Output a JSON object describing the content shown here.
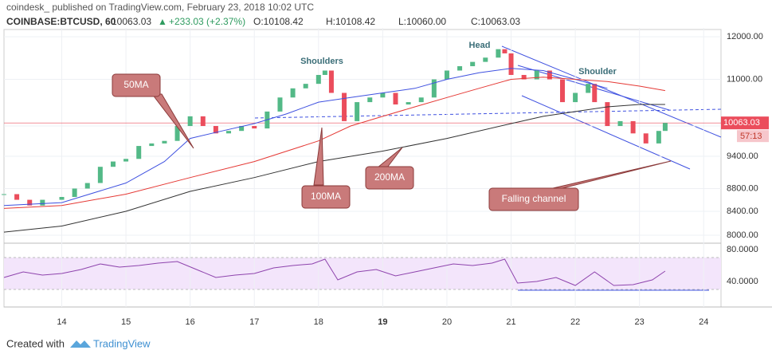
{
  "chart_data": {
    "type": "candlestick",
    "title": "coindesk_ published on TradingView.com, February 23, 2018 10:02 UTC",
    "symbol": "COINBASE:BTCUSD, 60",
    "last": "10063.03",
    "change_arrow": "▲",
    "change": "+233.03 (+2.37%)",
    "ohlc": [
      "O:10108.42",
      "H:10108.42",
      "L:10060.00",
      "C:10063.03"
    ],
    "log_scale": true,
    "xlim": [
      13.1,
      24.27
    ],
    "xticks": [
      14,
      15,
      16,
      17,
      18,
      19,
      20,
      21,
      22,
      23,
      24
    ],
    "emphasized_xtick": 19,
    "ylim": [
      7870,
      12220
    ],
    "yticks": [
      {
        "value": 8000,
        "label": "8000.00"
      },
      {
        "value": 8400,
        "label": "8400.00"
      },
      {
        "value": 8800,
        "label": "8800.00"
      },
      {
        "value": 9400,
        "label": "9400.00"
      },
      {
        "value": 10000,
        "label": "10000.00"
      },
      {
        "value": 11000,
        "label": "11000.00"
      },
      {
        "value": 12000,
        "label": "12000.00"
      }
    ],
    "current_price": 10063.03,
    "countdown": "57:13",
    "x": [
      13.1,
      13.3,
      13.5,
      13.7,
      14.0,
      14.2,
      14.4,
      14.6,
      14.8,
      15.0,
      15.2,
      15.4,
      15.6,
      15.8,
      16.0,
      16.2,
      16.4,
      16.6,
      16.8,
      17.0,
      17.2,
      17.4,
      17.6,
      17.8,
      18.0,
      18.1,
      18.2,
      18.4,
      18.6,
      18.8,
      19.0,
      19.2,
      19.4,
      19.6,
      19.8,
      20.0,
      20.2,
      20.4,
      20.6,
      20.8,
      20.9,
      21.0,
      21.2,
      21.4,
      21.6,
      21.8,
      22.0,
      22.2,
      22.3,
      22.5,
      22.7,
      22.9,
      23.1,
      23.3,
      23.4
    ],
    "series": [
      {
        "name": "BTCUSD",
        "up_color": "#53b987",
        "down_color": "#eb4d5c",
        "values": [
          8700,
          8600,
          8500,
          8600,
          8650,
          8800,
          8900,
          9200,
          9300,
          9350,
          9600,
          9650,
          9700,
          10000,
          10200,
          10000,
          9850,
          9900,
          10000,
          9950,
          10300,
          10600,
          10800,
          10900,
          11100,
          11200,
          10700,
          10100,
          10500,
          10600,
          10700,
          10450,
          10500,
          10600,
          11000,
          11200,
          11300,
          11400,
          11500,
          11700,
          11600,
          11100,
          11000,
          11200,
          11000,
          10500,
          10700,
          10900,
          10500,
          10000,
          10100,
          9850,
          9650,
          9900,
          10063.03
        ]
      },
      {
        "name": "50MA",
        "color": "#3f51e0",
        "x": [
          13.1,
          14,
          15,
          15.6,
          16,
          16.5,
          17,
          17.5,
          18,
          18.5,
          19,
          19.5,
          20,
          20.5,
          21,
          21.5,
          22,
          22.5
        ],
        "values": [
          8500,
          8550,
          8900,
          9300,
          9750,
          9900,
          10050,
          10250,
          10500,
          10600,
          10700,
          10800,
          11000,
          11150,
          11250,
          11200,
          11000,
          10800
        ]
      },
      {
        "name": "100MA",
        "color": "#e53935",
        "x": [
          13.1,
          14,
          15,
          16,
          17,
          18,
          18.5,
          19,
          19.5,
          20,
          20.5,
          21,
          21.5,
          22,
          22.5,
          23,
          23.4
        ],
        "values": [
          8450,
          8500,
          8700,
          9000,
          9300,
          9700,
          10000,
          10200,
          10400,
          10600,
          10800,
          11000,
          11050,
          11000,
          10950,
          10850,
          10750
        ]
      },
      {
        "name": "200MA",
        "color": "#333333",
        "x": [
          13.1,
          14,
          15,
          16,
          17,
          18,
          19,
          20,
          21,
          21.5,
          22,
          22.5,
          23,
          23.4
        ],
        "values": [
          8050,
          8150,
          8400,
          8750,
          9000,
          9300,
          9500,
          9750,
          10050,
          10200,
          10300,
          10400,
          10450,
          10450
        ]
      }
    ],
    "rsi": {
      "color": "#8e44ad",
      "band_color": "#f3e5fb",
      "ylim": [
        8,
        88
      ],
      "yticks": [
        {
          "value": 80,
          "label": "80.0000"
        },
        {
          "value": 40,
          "label": "40.0000"
        }
      ],
      "band": [
        30,
        70
      ],
      "x": [
        13.1,
        13.4,
        13.7,
        14.0,
        14.3,
        14.6,
        14.9,
        15.2,
        15.5,
        15.8,
        16.1,
        16.4,
        16.7,
        17.0,
        17.3,
        17.6,
        17.9,
        18.1,
        18.3,
        18.6,
        18.9,
        19.2,
        19.5,
        19.8,
        20.1,
        20.4,
        20.7,
        20.9,
        21.1,
        21.4,
        21.7,
        22.0,
        22.3,
        22.6,
        22.9,
        23.2,
        23.4
      ],
      "values": [
        45,
        52,
        48,
        50,
        55,
        62,
        58,
        60,
        63,
        65,
        55,
        45,
        48,
        50,
        57,
        60,
        62,
        68,
        42,
        52,
        55,
        47,
        52,
        57,
        62,
        60,
        63,
        68,
        38,
        40,
        45,
        35,
        52,
        35,
        36,
        42,
        53
      ]
    },
    "annotations": [
      "Head",
      "Shoulders",
      "Shoulder",
      "50MA",
      "100MA",
      "200MA",
      "Falling channel"
    ],
    "footer": [
      "Created with",
      "TradingView"
    ]
  }
}
